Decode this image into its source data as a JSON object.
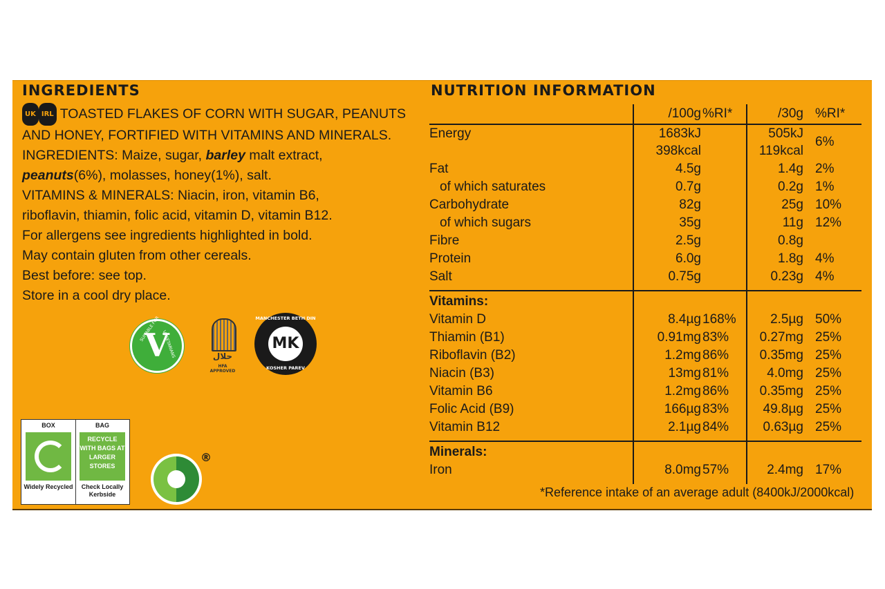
{
  "ingredients": {
    "title": "INGREDIENTS",
    "badges": [
      "UK",
      "IRL"
    ],
    "line1": "TOASTED FLAKES OF CORN WITH SUGAR, PEANUTS",
    "line2": "AND HONEY, FORTIFIED WITH VITAMINS AND MINERALS.",
    "l3a": "INGREDIENTS: Maize, sugar, ",
    "l3b": "barley",
    "l3c": " malt extract,",
    "l4a": "peanuts",
    "l4b": "(6%), molasses, honey(1%), salt.",
    "line5": "VITAMINS & MINERALS: Niacin, iron, vitamin B6,",
    "line6": "riboflavin, thiamin, folic acid, vitamin D, vitamin B12.",
    "line7": "For allergens see ingredients highlighted in bold.",
    "line8": "May contain gluten from other cereals.",
    "line9": "Best before: see top.",
    "line10": "Store in a cool dry place."
  },
  "logos": {
    "vegetarian": {
      "text_top": "SUITABLE FOR",
      "text_side": "VEGETARIANS",
      "mark": "V"
    },
    "halal": {
      "arabic": "حلال",
      "caption": "HFA APPROVED"
    },
    "kosher": {
      "top": "MANCHESTER BETH DIN",
      "bottom": "KOSHER PAREV",
      "mark": "MK"
    },
    "recycle": {
      "box_head": "BOX",
      "bag_head": "BAG",
      "bag_text": "RECYCLE WITH BAGS AT LARGER STORES",
      "box_foot": "Widely Recycled",
      "bag_foot": "Check Locally Kerbside"
    },
    "registered": "®"
  },
  "nutrition": {
    "title": "NUTRITION INFORMATION",
    "headers": [
      "/100g",
      "%RI*",
      "/30g",
      "%RI*"
    ],
    "energy": {
      "label": "Energy",
      "a1": "1683kJ",
      "a2": "398kcal",
      "c1": "505kJ",
      "c2": "119kcal",
      "d": "6%"
    },
    "rows": [
      {
        "label": "Fat",
        "a": "4.5g",
        "b": "",
        "c": "1.4g",
        "d": "2%",
        "sub": false
      },
      {
        "label": "of which saturates",
        "a": "0.7g",
        "b": "",
        "c": "0.2g",
        "d": "1%",
        "sub": true
      },
      {
        "label": "Carbohydrate",
        "a": "82g",
        "b": "",
        "c": "25g",
        "d": "10%",
        "sub": false
      },
      {
        "label": "of which sugars",
        "a": "35g",
        "b": "",
        "c": "11g",
        "d": "12%",
        "sub": true
      },
      {
        "label": "Fibre",
        "a": "2.5g",
        "b": "",
        "c": "0.8g",
        "d": "",
        "sub": false
      },
      {
        "label": "Protein",
        "a": "6.0g",
        "b": "",
        "c": "1.8g",
        "d": "4%",
        "sub": false
      },
      {
        "label": "Salt",
        "a": "0.75g",
        "b": "",
        "c": "0.23g",
        "d": "4%",
        "sub": false
      }
    ],
    "vitamins_title": "Vitamins:",
    "vitamins": [
      {
        "label": "Vitamin D",
        "a": "8.4µg",
        "b": "168%",
        "c": "2.5µg",
        "d": "50%"
      },
      {
        "label": "Thiamin (B1)",
        "a": "0.91mg",
        "b": "83%",
        "c": "0.27mg",
        "d": "25%"
      },
      {
        "label": "Riboflavin (B2)",
        "a": "1.2mg",
        "b": "86%",
        "c": "0.35mg",
        "d": "25%"
      },
      {
        "label": "Niacin (B3)",
        "a": "13mg",
        "b": "81%",
        "c": "4.0mg",
        "d": "25%"
      },
      {
        "label": "Vitamin B6",
        "a": "1.2mg",
        "b": "86%",
        "c": "0.35mg",
        "d": "25%"
      },
      {
        "label": "Folic Acid (B9)",
        "a": "166µg",
        "b": "83%",
        "c": "49.8µg",
        "d": "25%"
      },
      {
        "label": "Vitamin B12",
        "a": "2.1µg",
        "b": "84%",
        "c": "0.63µg",
        "d": "25%"
      }
    ],
    "minerals_title": "Minerals:",
    "minerals": [
      {
        "label": "Iron",
        "a": "8.0mg",
        "b": "57%",
        "c": "2.4mg",
        "d": "17%"
      }
    ],
    "footnote": "*Reference intake of an average adult (8400kJ/2000kcal)"
  },
  "colors": {
    "panel": "#f6a20c",
    "text": "#1a1a1a",
    "green": "#70b843"
  }
}
